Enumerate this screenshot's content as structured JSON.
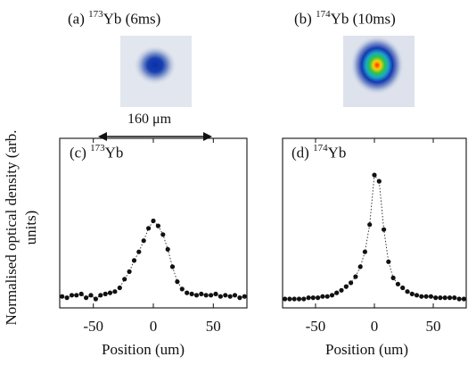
{
  "images": {
    "a": {
      "label": "(a)",
      "mass": "173",
      "element": "Yb",
      "time": "(6ms)"
    },
    "b": {
      "label": "(b)",
      "mass": "174",
      "element": "Yb",
      "time": "(10ms)"
    },
    "scale_bar": "160 μm"
  },
  "chart_data": [
    {
      "type": "scatter",
      "panel": "(c)",
      "mass": "173",
      "element": "Yb",
      "xlabel": "Position (um)",
      "ylabel": "Normalised optical density (arb. units)",
      "xlim": [
        -78,
        78
      ],
      "ylim": [
        0,
        1.08
      ],
      "xticks": [
        -50,
        0,
        50
      ],
      "xtick_labels": [
        "-50",
        "0",
        "50"
      ],
      "x": [
        -76,
        -72,
        -68,
        -64,
        -60,
        -56,
        -52,
        -48,
        -44,
        -40,
        -36,
        -32,
        -28,
        -24,
        -20,
        -16,
        -12,
        -8,
        -4,
        0,
        4,
        8,
        12,
        16,
        20,
        24,
        28,
        32,
        36,
        40,
        44,
        48,
        52,
        56,
        60,
        64,
        68,
        72,
        76
      ],
      "y": [
        0.02,
        0.01,
        0.03,
        0.03,
        0.04,
        0.01,
        0.03,
        0.0,
        0.03,
        0.04,
        0.05,
        0.06,
        0.09,
        0.16,
        0.22,
        0.31,
        0.38,
        0.47,
        0.57,
        0.63,
        0.59,
        0.52,
        0.4,
        0.26,
        0.14,
        0.08,
        0.05,
        0.04,
        0.03,
        0.04,
        0.03,
        0.03,
        0.04,
        0.02,
        0.03,
        0.02,
        0.03,
        0.01,
        0.02
      ]
    },
    {
      "type": "scatter",
      "panel": "(d)",
      "mass": "174",
      "element": "Yb",
      "xlabel": "Position (um)",
      "xlim": [
        -78,
        78
      ],
      "ylim": [
        0,
        1.08
      ],
      "xticks": [
        -50,
        0,
        50
      ],
      "xtick_labels": [
        "-50",
        "0",
        "50"
      ],
      "x": [
        -76,
        -72,
        -68,
        -64,
        -60,
        -56,
        -52,
        -48,
        -44,
        -40,
        -36,
        -32,
        -28,
        -24,
        -20,
        -16,
        -12,
        -8,
        -4,
        0,
        4,
        8,
        12,
        16,
        20,
        24,
        28,
        32,
        36,
        40,
        44,
        48,
        52,
        56,
        60,
        64,
        68,
        72,
        76
      ],
      "y": [
        0.0,
        0.0,
        0.0,
        0.0,
        0.0,
        0.01,
        0.01,
        0.01,
        0.02,
        0.02,
        0.03,
        0.05,
        0.07,
        0.1,
        0.13,
        0.18,
        0.26,
        0.38,
        0.6,
        1.0,
        0.95,
        0.56,
        0.3,
        0.17,
        0.12,
        0.09,
        0.06,
        0.04,
        0.03,
        0.02,
        0.02,
        0.02,
        0.01,
        0.01,
        0.01,
        0.01,
        0.01,
        0.0,
        0.0
      ]
    }
  ]
}
